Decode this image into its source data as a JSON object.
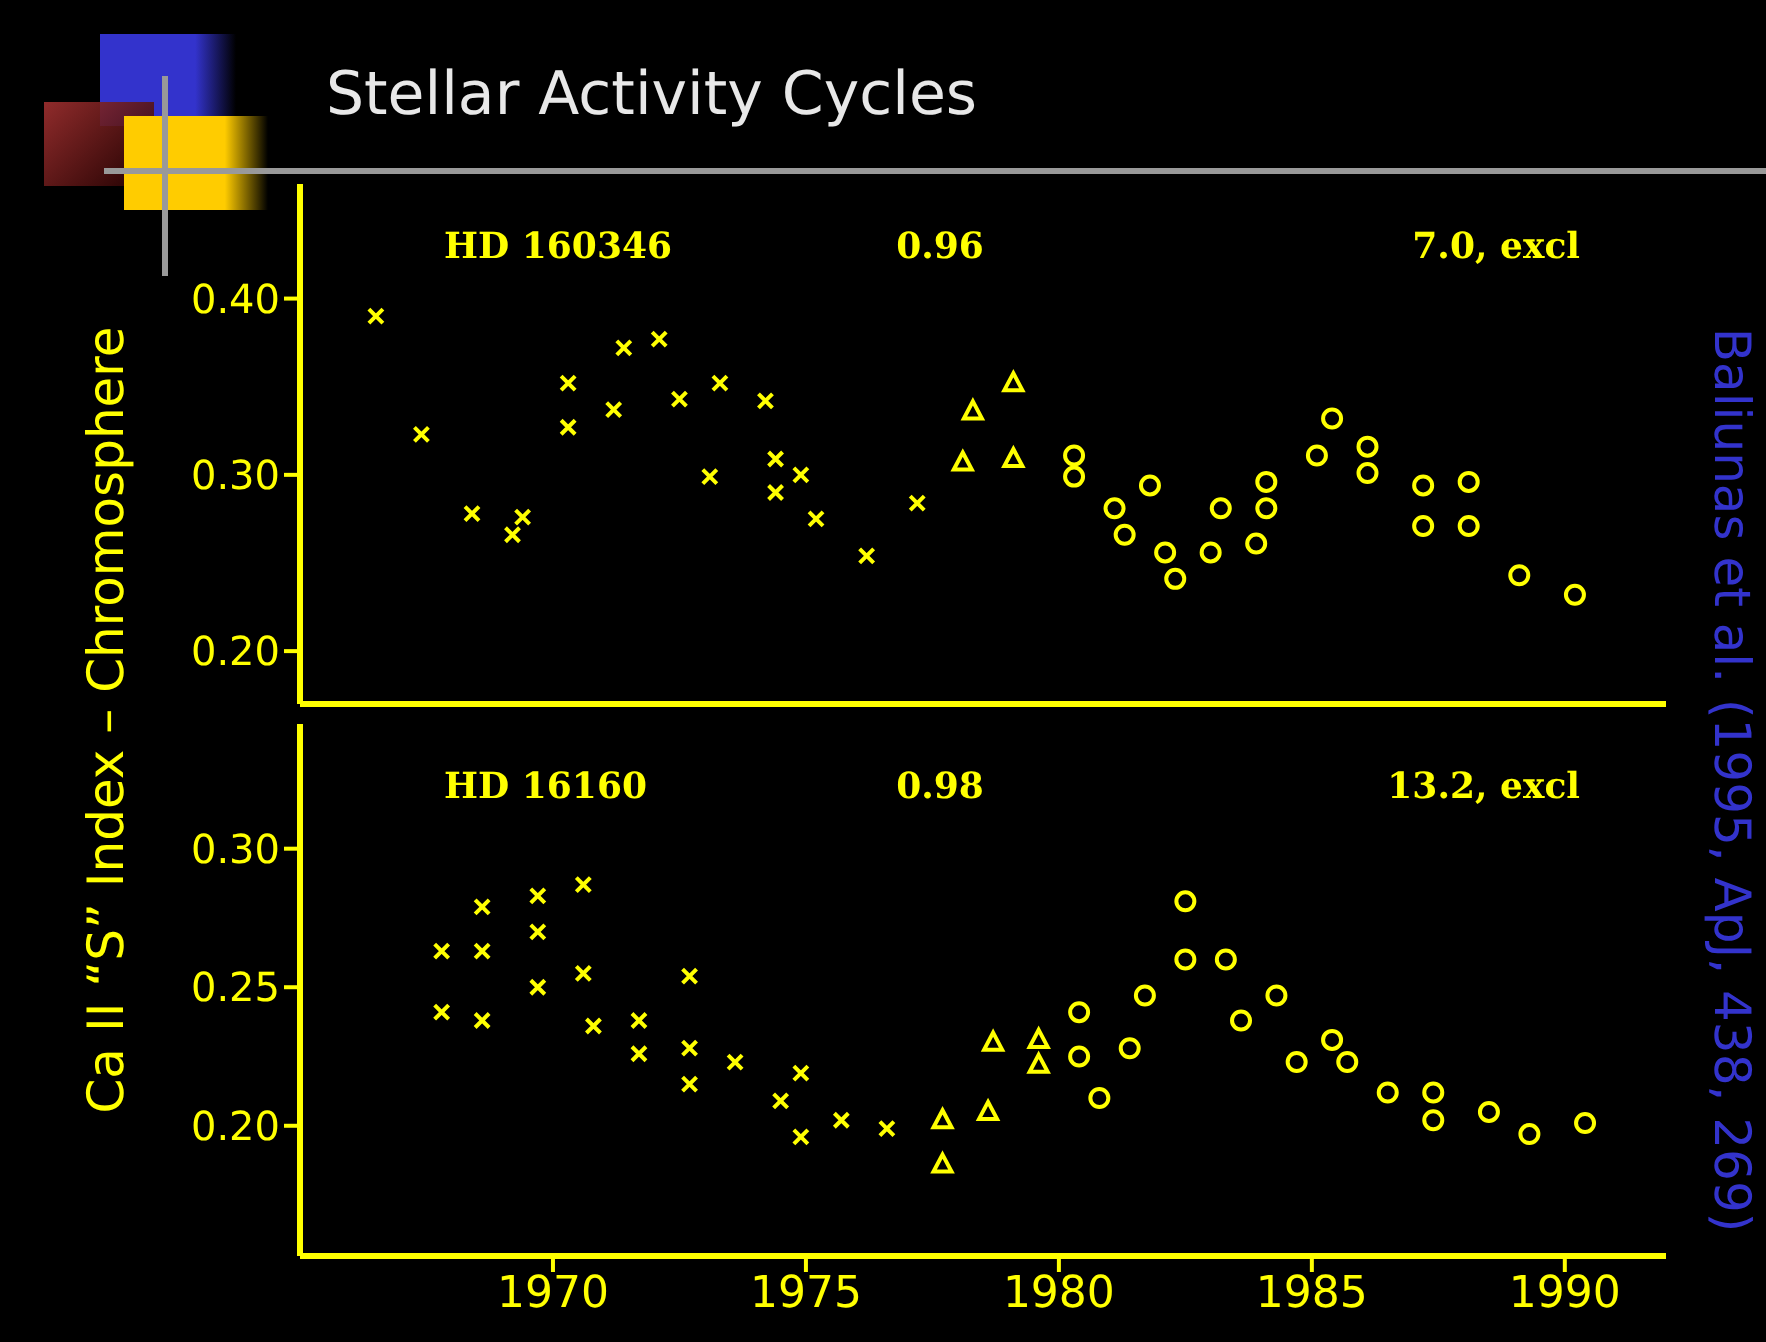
{
  "chart_data": [
    {
      "type": "scatter",
      "title": "Stellar Activity Cycles",
      "ylabel": "Ca II “S” Index – Chromosphere",
      "annotations": [
        "HD 160346",
        "0.96",
        "7.0, excl",
        "Baliunas et al. (1995, ApJ, 438, 269)"
      ],
      "xlim": [
        1965,
        1992
      ],
      "xticks": [
        1970,
        1975,
        1980,
        1985,
        1990
      ],
      "ylim": [
        0.17,
        0.465
      ],
      "yticks": [
        {
          "value": 0.2,
          "label": "0.20"
        },
        {
          "value": 0.3,
          "label": "0.30"
        },
        {
          "value": 0.4,
          "label": "0.40"
        }
      ],
      "tick_labels": "y",
      "series": [
        {
          "color": "#ffff00",
          "marker": "cross",
          "x": [
            1966.5,
            1967.4,
            1968.4,
            1969.2,
            1969.4,
            1970.3,
            1970.3,
            1971.2,
            1971.4,
            1972.1,
            1972.5,
            1973.1,
            1973.3,
            1974.2,
            1974.4,
            1974.4,
            1974.9,
            1975.2,
            1976.2,
            1977.2
          ],
          "values": [
            0.39,
            0.323,
            0.278,
            0.266,
            0.276,
            0.352,
            0.327,
            0.337,
            0.372,
            0.377,
            0.343,
            0.299,
            0.352,
            0.342,
            0.309,
            0.29,
            0.3,
            0.275,
            0.254,
            0.284
          ]
        },
        {
          "color": "#ffff00",
          "marker": "triangle",
          "x": [
            1978.1,
            1978.3,
            1979.1,
            1979.1
          ],
          "values": [
            0.307,
            0.336,
            0.352,
            0.309
          ]
        },
        {
          "color": "#ffff00",
          "marker": "circle",
          "x": [
            1980.3,
            1980.3,
            1981.1,
            1981.3,
            1982.1,
            1981.8,
            1982.3,
            1983.0,
            1983.2,
            1983.9,
            1984.1,
            1984.1,
            1985.1,
            1985.4,
            1986.1,
            1986.1,
            1987.2,
            1987.2,
            1988.1,
            1988.1,
            1989.1,
            1990.2
          ],
          "values": [
            0.311,
            0.299,
            0.281,
            0.266,
            0.256,
            0.294,
            0.241,
            0.256,
            0.281,
            0.261,
            0.281,
            0.296,
            0.311,
            0.332,
            0.316,
            0.301,
            0.294,
            0.271,
            0.296,
            0.271,
            0.243,
            0.232
          ]
        }
      ]
    },
    {
      "type": "scatter",
      "annotations": [
        "HD 16160",
        "0.98",
        "13.2, excl"
      ],
      "xlim": [
        1965,
        1992
      ],
      "xticks": [
        1970,
        1975,
        1980,
        1985,
        1990
      ],
      "ylim": [
        0.153,
        0.345
      ],
      "yticks": [
        {
          "value": 0.2,
          "label": "0.20"
        },
        {
          "value": 0.25,
          "label": "0.25"
        },
        {
          "value": 0.3,
          "label": "0.30"
        }
      ],
      "series": [
        {
          "color": "#ffff00",
          "marker": "cross",
          "x": [
            1967.8,
            1967.8,
            1968.6,
            1968.6,
            1968.6,
            1969.7,
            1969.7,
            1969.7,
            1970.6,
            1970.6,
            1970.8,
            1971.7,
            1971.7,
            1972.7,
            1972.7,
            1972.7,
            1973.6,
            1974.5,
            1974.9,
            1974.9,
            1975.7,
            1976.6
          ],
          "values": [
            0.263,
            0.241,
            0.279,
            0.263,
            0.238,
            0.283,
            0.27,
            0.25,
            0.287,
            0.255,
            0.236,
            0.238,
            0.226,
            0.254,
            0.228,
            0.215,
            0.223,
            0.209,
            0.219,
            0.196,
            0.202,
            0.199
          ]
        },
        {
          "color": "#ffff00",
          "marker": "triangle",
          "x": [
            1977.7,
            1977.7,
            1978.6,
            1978.7,
            1979.6,
            1979.6
          ],
          "values": [
            0.202,
            0.186,
            0.205,
            0.23,
            0.231,
            0.222
          ]
        },
        {
          "color": "#ffff00",
          "marker": "circle",
          "x": [
            1980.4,
            1980.4,
            1980.8,
            1981.4,
            1981.7,
            1982.5,
            1982.5,
            1983.3,
            1983.6,
            1984.3,
            1984.7,
            1985.4,
            1985.7,
            1986.5,
            1987.4,
            1987.4,
            1988.5,
            1989.3,
            1990.4
          ],
          "values": [
            0.225,
            0.241,
            0.21,
            0.228,
            0.247,
            0.26,
            0.281,
            0.26,
            0.238,
            0.247,
            0.223,
            0.231,
            0.223,
            0.212,
            0.212,
            0.202,
            0.205,
            0.197,
            0.201
          ]
        }
      ]
    }
  ]
}
